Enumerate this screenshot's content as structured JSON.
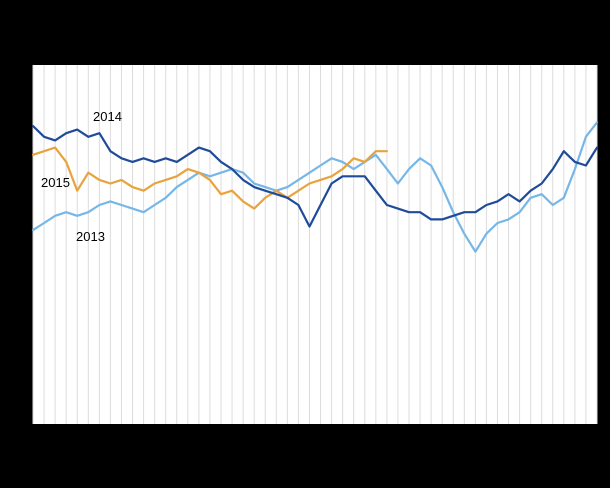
{
  "colors": {
    "background": "#000000",
    "plot_background": "#ffffff",
    "gridline": "#dcdcdc"
  },
  "chart_data": {
    "type": "line",
    "title": "",
    "xlabel": "",
    "ylabel": "",
    "x_unit": "week",
    "x": [
      1,
      2,
      3,
      4,
      5,
      6,
      7,
      8,
      9,
      10,
      11,
      12,
      13,
      14,
      15,
      16,
      17,
      18,
      19,
      20,
      21,
      22,
      23,
      24,
      25,
      26,
      27,
      28,
      29,
      30,
      31,
      32,
      33,
      34,
      35,
      36,
      37,
      38,
      39,
      40,
      41,
      42,
      43,
      44,
      45,
      46,
      47,
      48,
      49,
      50,
      51,
      52
    ],
    "ylim": [
      0,
      100
    ],
    "grid": "vertical",
    "legend_position": "inline-labels",
    "series": [
      {
        "name": "2014",
        "color": "#1f4b99",
        "values": [
          83,
          80,
          79,
          81,
          82,
          80,
          81,
          76,
          74,
          73,
          74,
          73,
          74,
          73,
          75,
          77,
          76,
          73,
          71,
          68,
          66,
          65,
          64,
          63,
          61,
          55,
          61,
          67,
          69,
          69,
          69,
          65,
          61,
          60,
          59,
          59,
          57,
          57,
          58,
          59,
          59,
          61,
          62,
          64,
          62,
          65,
          67,
          71,
          76,
          73,
          72,
          77
        ]
      },
      {
        "name": "2015",
        "color": "#e8a33d",
        "values": [
          75,
          76,
          77,
          73,
          65,
          70,
          68,
          67,
          68,
          66,
          65,
          67,
          68,
          69,
          71,
          70,
          68,
          64,
          65,
          62,
          60,
          63,
          65,
          63,
          65,
          67,
          68,
          69,
          71,
          74,
          73,
          76,
          76
        ]
      },
      {
        "name": "2013",
        "color": "#76b7e8",
        "values": [
          54,
          56,
          58,
          59,
          58,
          59,
          61,
          62,
          61,
          60,
          59,
          61,
          63,
          66,
          68,
          70,
          69,
          70,
          71,
          70,
          67,
          66,
          65,
          66,
          68,
          70,
          72,
          74,
          73,
          71,
          73,
          75,
          71,
          67,
          71,
          74,
          72,
          66,
          59,
          53,
          48,
          53,
          56,
          57,
          59,
          63,
          64,
          61,
          63,
          71,
          80,
          84
        ]
      }
    ]
  },
  "labels": {
    "s2014": "2014",
    "s2015": "2015",
    "s2013": "2013"
  }
}
